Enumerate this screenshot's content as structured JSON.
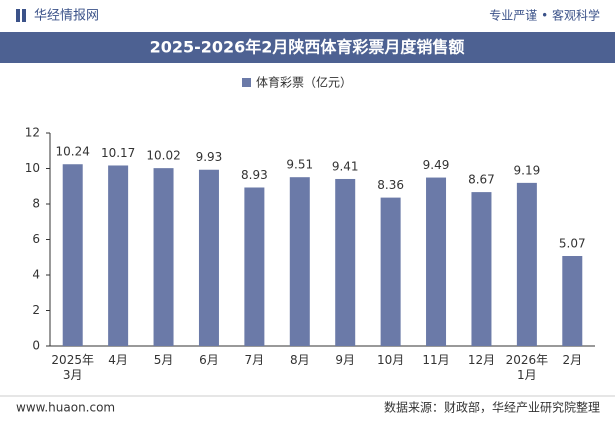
{
  "header": {
    "brand": "华经情报网",
    "slogan": "专业严谨 • 客观科学"
  },
  "chart_data": {
    "type": "bar",
    "title": "2025-2026年2月陕西体育彩票月度销售额",
    "categories": [
      "2025年\n3月",
      "4月",
      "5月",
      "6月",
      "7月",
      "8月",
      "9月",
      "10月",
      "11月",
      "12月",
      "2026年\n1月",
      "2月"
    ],
    "series": [
      {
        "name": "体育彩票（亿元）",
        "color": "#6b7aa8",
        "values": [
          10.24,
          10.17,
          10.02,
          9.93,
          8.93,
          9.51,
          9.41,
          8.36,
          9.49,
          8.67,
          9.19,
          5.07
        ]
      }
    ],
    "ylim": [
      0,
      12
    ],
    "yticks": [
      0,
      2,
      4,
      6,
      8,
      10,
      12
    ],
    "grid": false
  },
  "footer": {
    "website": "www.huaon.com",
    "source": "数据来源：财政部，华经产业研究院整理"
  }
}
